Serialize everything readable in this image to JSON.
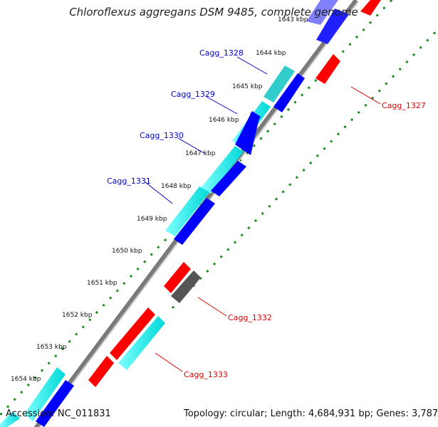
{
  "title": "Chloroflexus aggregans DSM 9485, complete genome",
  "footer": {
    "accession_label": "Accession:",
    "accession": "NC_011831",
    "topology_label": "Topology:",
    "topology": "circular",
    "length_label": "Length:",
    "length": "4,684,931 bp",
    "genes_label": "Genes:",
    "genes": "3,787"
  },
  "colors": {
    "backbone": "#888888",
    "cyan_gene": "#00ffff",
    "blue_gene": "#0000ff",
    "red_gene": "#ff0000",
    "grey_gene": "#606060",
    "lavender_gene": "#8080ff",
    "dotted_track": "#1a8c1a",
    "blue_label": "#0000cc",
    "red_label": "#dd0000"
  },
  "tick_labels": [
    "1643 kbp",
    "1644 kbp",
    "1645 kbp",
    "1646 kbp",
    "1647 kbp",
    "1648 kbp",
    "1649 kbp",
    "1650 kbp",
    "1651 kbp",
    "1652 kbp",
    "1653 kbp",
    "1654 kbp"
  ],
  "gene_labels_blue": [
    "Cagg_1328",
    "Cagg_1329",
    "Cagg_1330",
    "Cagg_1331"
  ],
  "gene_labels_red": [
    "Cagg_1327",
    "Cagg_1332",
    "Cagg_1333"
  ]
}
